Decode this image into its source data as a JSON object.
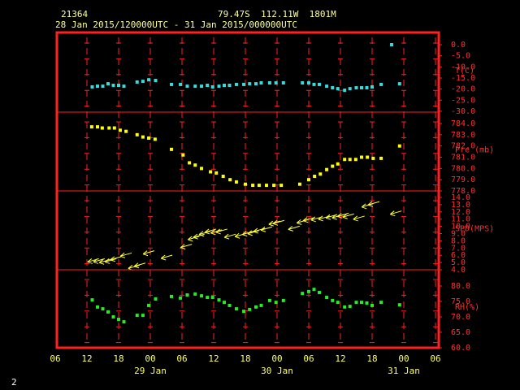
{
  "chart_data": {
    "type": "meteogram",
    "station": "21364",
    "location": "79.47S  112.11W  1801M",
    "period": "28 Jan 2015/120000UTC - 31 Jan 2015/000000UTC",
    "page_number": "2",
    "xlim": [
      6,
      78
    ],
    "xticks": [
      {
        "value": 6,
        "label": "06"
      },
      {
        "value": 12,
        "label": "12"
      },
      {
        "value": 18,
        "label": "18"
      },
      {
        "value": 24,
        "label": "00"
      },
      {
        "value": 30,
        "label": "06"
      },
      {
        "value": 36,
        "label": "12"
      },
      {
        "value": 42,
        "label": "18"
      },
      {
        "value": 48,
        "label": "00"
      },
      {
        "value": 54,
        "label": "06"
      },
      {
        "value": 60,
        "label": "12"
      },
      {
        "value": 66,
        "label": "18"
      },
      {
        "value": 72,
        "label": "00"
      },
      {
        "value": 78,
        "label": "06"
      }
    ],
    "date_ticks": [
      {
        "value": 24,
        "label": "29 Jan"
      },
      {
        "value": 48,
        "label": "30 Jan"
      },
      {
        "value": 72,
        "label": "31 Jan"
      }
    ],
    "frame_color": "#ff2020",
    "panels": [
      {
        "type": "scatter",
        "name": "T(C)",
        "color": "#33dddd",
        "ylim": [
          -30,
          0
        ],
        "yticks": [
          {
            "value": 0,
            "label": "0.0"
          },
          {
            "value": -5,
            "label": "-5.0"
          },
          {
            "value": -10,
            "label": "-10.0"
          },
          {
            "value": -15,
            "label": "-15.0"
          },
          {
            "value": -20,
            "label": "-20.0"
          },
          {
            "value": -25,
            "label": "-25.0"
          },
          {
            "value": -30,
            "label": "-30.0"
          }
        ],
        "x": [
          13,
          14,
          15,
          16,
          17,
          18,
          19,
          21.5,
          22.6,
          23.7,
          25,
          28,
          29.7,
          31,
          32.5,
          33.7,
          34.8,
          35.8,
          37,
          38,
          39,
          40.3,
          41.7,
          42.8,
          44,
          45,
          46.6,
          47.8,
          49.2,
          52.8,
          54,
          55,
          56,
          57.4,
          58.5,
          59.5,
          60.8,
          61.8,
          63,
          64,
          65,
          66,
          67.7,
          69.7,
          71.2
        ],
        "values": [
          -19.0,
          -18.7,
          -18.7,
          -17.6,
          -18.3,
          -18.3,
          -18.7,
          -16.8,
          -16.5,
          -15.8,
          -16.1,
          -17.9,
          -17.9,
          -18.7,
          -18.7,
          -18.7,
          -18.3,
          -19.0,
          -18.7,
          -18.3,
          -18.3,
          -17.9,
          -17.9,
          -17.6,
          -17.6,
          -17.2,
          -17.2,
          -17.2,
          -17.2,
          -17.2,
          -17.2,
          -17.9,
          -17.9,
          -18.7,
          -19.4,
          -19.8,
          -20.5,
          -19.8,
          -19.4,
          -19.4,
          -19.4,
          -19.0,
          -17.9,
          0.0,
          -17.6
        ]
      },
      {
        "type": "scatter",
        "name": "Pre (mb)",
        "color": "#ffff00",
        "ylim": [
          778,
          784
        ],
        "yticks": [
          {
            "value": 778,
            "label": "778.0"
          },
          {
            "value": 779,
            "label": "779.0"
          },
          {
            "value": 780,
            "label": "780.0"
          },
          {
            "value": 781,
            "label": "781.0"
          },
          {
            "value": 782,
            "label": "782.0"
          },
          {
            "value": 783,
            "label": "783.0"
          },
          {
            "value": 784,
            "label": "784.0"
          }
        ],
        "x": [
          12.9,
          14,
          14.9,
          16.2,
          17.2,
          18.3,
          19.4,
          21.5,
          22.6,
          23.7,
          24.9,
          28,
          30.2,
          31.4,
          32.5,
          33.7,
          35.4,
          36.5,
          37.8,
          39.1,
          40.3,
          42,
          43.4,
          44.6,
          46,
          47.4,
          48.8,
          52.3,
          54,
          55.1,
          56.2,
          57.4,
          58.5,
          59.5,
          60.8,
          61.8,
          62.9,
          64,
          65.1,
          66.2,
          67.7,
          71.2
        ],
        "values": [
          783.7,
          783.7,
          783.6,
          783.6,
          783.6,
          783.4,
          783.3,
          783.0,
          782.8,
          782.7,
          782.6,
          781.7,
          781.2,
          780.5,
          780.3,
          780.0,
          779.7,
          779.6,
          779.3,
          779.0,
          778.8,
          778.6,
          778.5,
          778.5,
          778.5,
          778.5,
          778.5,
          778.6,
          779.0,
          779.3,
          779.5,
          779.9,
          780.2,
          780.4,
          780.8,
          780.8,
          780.8,
          781.0,
          781.0,
          780.9,
          780.9,
          782.0
        ]
      },
      {
        "type": "wind",
        "name": "SPD(MPS)",
        "color": "#ffff33",
        "ylim": [
          4,
          14
        ],
        "yticks": [
          {
            "value": 4,
            "label": "4.0"
          },
          {
            "value": 5,
            "label": "5.0"
          },
          {
            "value": 6,
            "label": "6.0"
          },
          {
            "value": 7,
            "label": "7.0"
          },
          {
            "value": 8,
            "label": "8.0"
          },
          {
            "value": 9,
            "label": "9.0"
          },
          {
            "value": 10,
            "label": "10.0"
          },
          {
            "value": 11,
            "label": "11.0"
          },
          {
            "value": 12,
            "label": "12.0"
          },
          {
            "value": 13,
            "label": "13.0"
          },
          {
            "value": 14,
            "label": "14.0"
          }
        ],
        "x": [
          13.2,
          14.3,
          15.4,
          16.5,
          17.5,
          19.4,
          20.9,
          22,
          23.7,
          27.1,
          30.8,
          32.2,
          33.2,
          34.3,
          35.4,
          36.5,
          37.5,
          39.1,
          41.1,
          42.5,
          43.5,
          44.6,
          46,
          47.5,
          48.3,
          51.2,
          52.8,
          54,
          55.5,
          56.9,
          58.3,
          59.5,
          60.5,
          61.5,
          63.5,
          65.1,
          66.3,
          70.5
        ],
        "values": [
          5.3,
          5.3,
          5.2,
          5.3,
          5.6,
          6.1,
          4.4,
          4.7,
          6.4,
          5.8,
          7.3,
          8.4,
          8.7,
          9.1,
          9.4,
          9.3,
          9.4,
          8.7,
          8.8,
          9.1,
          9.2,
          9.5,
          9.7,
          10.5,
          10.6,
          9.8,
          10.7,
          11.0,
          11.1,
          11.2,
          11.4,
          11.4,
          11.6,
          11.5,
          11.2,
          12.9,
          13.2,
          11.9
        ]
      },
      {
        "type": "scatter",
        "name": "RH(%)",
        "color": "#22ee22",
        "ylim": [
          60,
          80
        ],
        "yticks": [
          {
            "value": 60,
            "label": "60.0"
          },
          {
            "value": 65,
            "label": "65.0"
          },
          {
            "value": 70,
            "label": "70.0"
          },
          {
            "value": 75,
            "label": "75.0"
          },
          {
            "value": 80,
            "label": "80.0"
          }
        ],
        "x": [
          13,
          14,
          15,
          16,
          17,
          18,
          19,
          21.5,
          22.6,
          23.7,
          25,
          28,
          29.7,
          31,
          32.5,
          33.7,
          34.8,
          35.8,
          37,
          38,
          39,
          40.3,
          41.7,
          42.8,
          44,
          45,
          46.6,
          47.8,
          49.2,
          52.8,
          54,
          55,
          56,
          57.4,
          58.5,
          59.5,
          60.8,
          61.8,
          63,
          64,
          65,
          66,
          67.7,
          71.2
        ],
        "values": [
          75.5,
          73.2,
          72.6,
          71.6,
          70.0,
          69.2,
          68.4,
          70.5,
          70.5,
          73.7,
          75.8,
          76.6,
          76.1,
          77.1,
          77.4,
          76.8,
          76.3,
          76.3,
          75.5,
          74.7,
          73.7,
          72.6,
          71.8,
          72.4,
          73.2,
          73.7,
          75.3,
          74.7,
          75.3,
          77.6,
          78.2,
          78.9,
          77.9,
          76.3,
          75.3,
          74.7,
          73.2,
          73.4,
          74.7,
          74.7,
          74.5,
          73.7,
          74.7,
          73.9
        ]
      }
    ]
  }
}
